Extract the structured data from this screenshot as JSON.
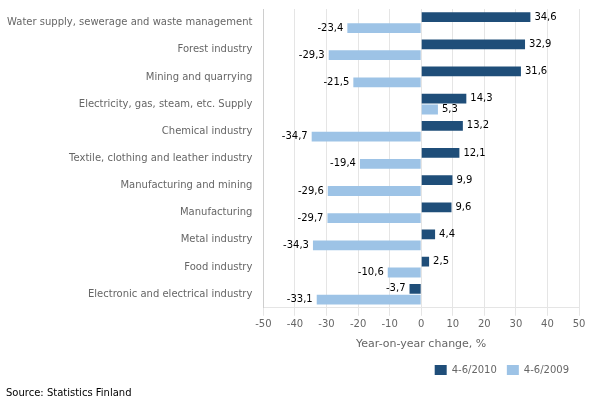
{
  "chart_data": {
    "type": "bar",
    "orientation": "horizontal",
    "categories": [
      "Electronic and electrical industry",
      "Food industry",
      "Metal industry",
      "Manufacturing",
      "Manufacturing and mining",
      "Textile, clothing and leather industry",
      "Chemical industry",
      "Electricity, gas, steam, etc. Supply",
      "Mining and quarrying",
      "Forest industry",
      "Water supply, sewerage and waste management"
    ],
    "series": [
      {
        "name": "4-6/2010",
        "color": "#1F4E79",
        "values": [
          -3.7,
          2.5,
          4.4,
          9.6,
          9.9,
          12.1,
          13.2,
          14.3,
          31.6,
          32.9,
          34.6
        ],
        "value_labels": [
          "-3,7",
          "2,5",
          "4,4",
          "9,6",
          "9,9",
          "12,1",
          "13,2",
          "14,3",
          "31,6",
          "32,9",
          "34,6"
        ]
      },
      {
        "name": "4-6/2009",
        "color": "#9DC3E6",
        "values": [
          -33.1,
          -10.6,
          -34.3,
          -29.7,
          -29.6,
          -19.4,
          -34.7,
          5.3,
          -21.5,
          -29.3,
          -23.4
        ],
        "value_labels": [
          "-33,1",
          "-10,6",
          "-34,3",
          "-29,7",
          "-29,6",
          "-19,4",
          "-34,7",
          "5,3",
          "-21,5",
          "-29,3",
          "-23,4"
        ]
      }
    ],
    "xlabel": "Year-on-year change, %",
    "xlim": [
      -50,
      50
    ],
    "xticks": [
      -50,
      -40,
      -30,
      -20,
      -10,
      0,
      10,
      20,
      30,
      40,
      50
    ],
    "grid": true,
    "legend": "lower right",
    "data_labels": true,
    "annotations": [
      "Source: Statistics Finland"
    ]
  }
}
